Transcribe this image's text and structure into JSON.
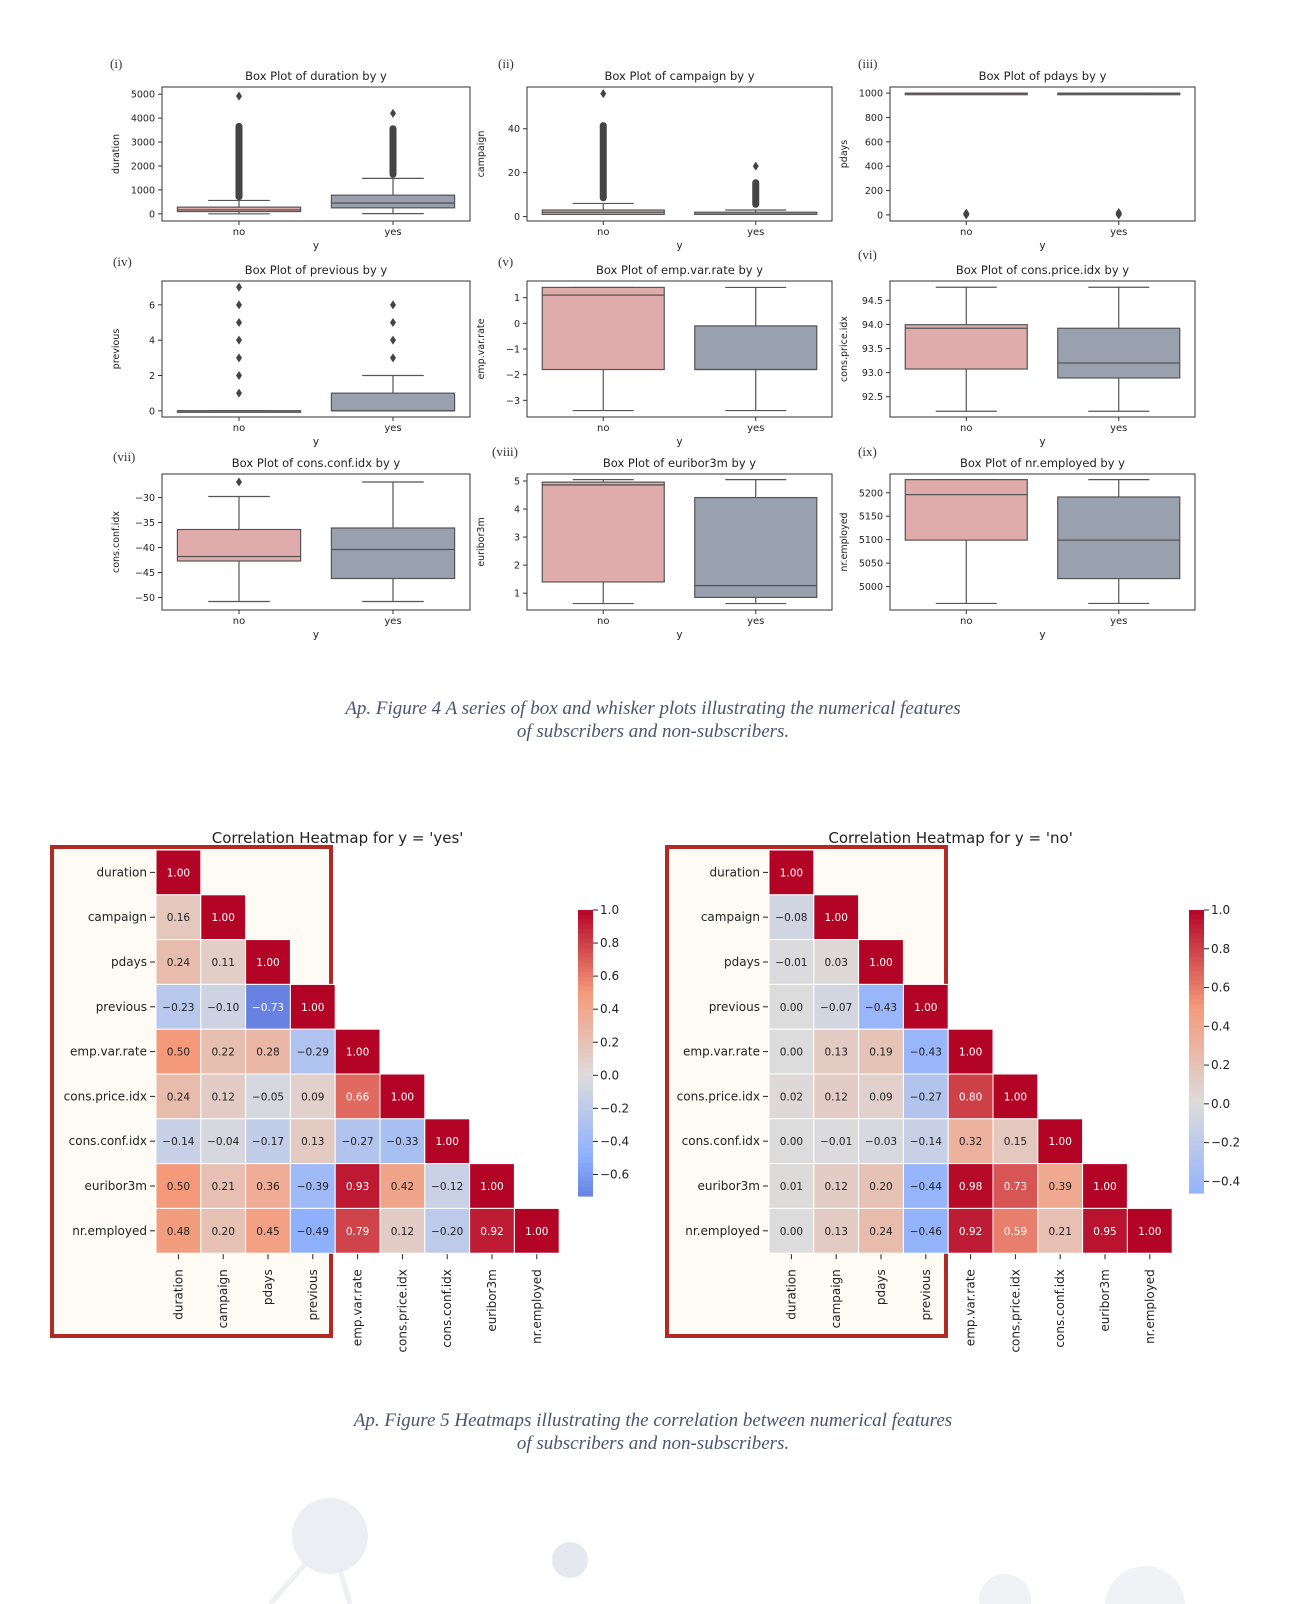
{
  "figure4": {
    "caption_line1": "Ap. Figure 4 A series of box and whisker plots illustrating the numerical features",
    "caption_line2": "of subscribers and non-subscribers.",
    "colors": {
      "no": "#e0abab",
      "yes": "#98a1ad",
      "line": "#555555"
    },
    "chart_data": [
      {
        "panel": "(i)",
        "type": "box",
        "title": "Box Plot of duration by y",
        "xlabel": "y",
        "ylabel": "duration",
        "categories": [
          "no",
          "yes"
        ],
        "ylim": [
          -300,
          5300
        ],
        "yticks": [
          0,
          1000,
          2000,
          3000,
          4000,
          5000
        ],
        "boxes": [
          {
            "cat": "no",
            "whislo": 0,
            "q1": 95,
            "med": 165,
            "q3": 280,
            "whishi": 560,
            "outliers_from": 570,
            "outliers_to": 3800,
            "outliers": [
              4920
            ]
          },
          {
            "cat": "yes",
            "whislo": 8,
            "q1": 250,
            "med": 450,
            "q3": 780,
            "whishi": 1480,
            "outliers_from": 1500,
            "outliers_to": 3700,
            "outliers": [
              4200
            ]
          }
        ]
      },
      {
        "panel": "(ii)",
        "type": "box",
        "title": "Box Plot of campaign by y",
        "xlabel": "y",
        "ylabel": "campaign",
        "categories": [
          "no",
          "yes"
        ],
        "ylim": [
          -2,
          59
        ],
        "yticks": [
          0,
          20,
          40
        ],
        "boxes": [
          {
            "cat": "no",
            "whislo": 1,
            "q1": 1,
            "med": 2,
            "q3": 3,
            "whishi": 6,
            "outliers_from": 7,
            "outliers_to": 43,
            "outliers": [
              56
            ]
          },
          {
            "cat": "yes",
            "whislo": 1,
            "q1": 1,
            "med": 1,
            "q3": 2,
            "whishi": 3,
            "outliers_from": 4,
            "outliers_to": 17,
            "outliers": [
              23
            ]
          }
        ]
      },
      {
        "panel": "(iii)",
        "type": "box",
        "title": "Box Plot of pdays by y",
        "xlabel": "y",
        "ylabel": "pdays",
        "categories": [
          "no",
          "yes"
        ],
        "ylim": [
          -50,
          1050
        ],
        "yticks": [
          0,
          200,
          400,
          600,
          800,
          1000
        ],
        "boxes": [
          {
            "cat": "no",
            "whislo": 999,
            "q1": 999,
            "med": 999,
            "q3": 999,
            "whishi": 999,
            "outliers": [
              0,
              3,
              6,
              10,
              15
            ]
          },
          {
            "cat": "yes",
            "whislo": 999,
            "q1": 999,
            "med": 999,
            "q3": 999,
            "whishi": 999,
            "outliers": [
              0,
              3,
              6,
              10,
              15,
              20
            ]
          }
        ]
      },
      {
        "panel": "(iv)",
        "type": "box",
        "title": "Box Plot of previous by y",
        "xlabel": "y",
        "ylabel": "previous",
        "categories": [
          "no",
          "yes"
        ],
        "ylim": [
          -0.35,
          7.35
        ],
        "yticks": [
          0,
          2,
          4,
          6
        ],
        "boxes": [
          {
            "cat": "no",
            "whislo": 0,
            "q1": 0,
            "med": 0,
            "q3": 0,
            "whishi": 0,
            "outliers": [
              1,
              2,
              3,
              4,
              5,
              6,
              7
            ]
          },
          {
            "cat": "yes",
            "whislo": 0,
            "q1": 0,
            "med": 0,
            "q3": 1,
            "whishi": 2,
            "outliers": [
              3,
              4,
              5,
              6
            ]
          }
        ]
      },
      {
        "panel": "(v)",
        "type": "box",
        "title": "Box Plot of emp.var.rate by y",
        "xlabel": "y",
        "ylabel": "emp.var.rate",
        "categories": [
          "no",
          "yes"
        ],
        "ylim": [
          -3.65,
          1.65
        ],
        "yticks": [
          1,
          0,
          -1,
          -2,
          -3
        ],
        "boxes": [
          {
            "cat": "no",
            "whislo": -3.4,
            "q1": -1.8,
            "med": 1.1,
            "q3": 1.4,
            "whishi": 1.4,
            "outliers": []
          },
          {
            "cat": "yes",
            "whislo": -3.4,
            "q1": -1.8,
            "med": -1.8,
            "q3": -0.1,
            "whishi": 1.4,
            "outliers": []
          }
        ]
      },
      {
        "panel": "(vi)",
        "type": "box",
        "title": "Box Plot of cons.price.idx by y",
        "xlabel": "y",
        "ylabel": "cons.price.idx",
        "categories": [
          "no",
          "yes"
        ],
        "ylim": [
          92.08,
          94.9
        ],
        "yticks": [
          92.5,
          93.0,
          93.5,
          94.0,
          94.5
        ],
        "boxes": [
          {
            "cat": "no",
            "whislo": 92.2,
            "q1": 93.075,
            "med": 93.92,
            "q3": 93.994,
            "whishi": 94.77,
            "outliers": []
          },
          {
            "cat": "yes",
            "whislo": 92.2,
            "q1": 92.89,
            "med": 93.2,
            "q3": 93.92,
            "whishi": 94.77,
            "outliers": []
          }
        ]
      },
      {
        "panel": "(vii)",
        "type": "box",
        "title": "Box Plot of cons.conf.idx by y",
        "xlabel": "y",
        "ylabel": "cons.conf.idx",
        "categories": [
          "no",
          "yes"
        ],
        "ylim": [
          -52.5,
          -25.3
        ],
        "yticks": [
          -30,
          -35,
          -40,
          -45,
          -50
        ],
        "boxes": [
          {
            "cat": "no",
            "whislo": -50.8,
            "q1": -42.7,
            "med": -41.8,
            "q3": -36.4,
            "whishi": -29.8,
            "outliers": [
              -26.9
            ]
          },
          {
            "cat": "yes",
            "whislo": -50.8,
            "q1": -46.2,
            "med": -40.4,
            "q3": -36.1,
            "whishi": -26.9,
            "outliers": []
          }
        ]
      },
      {
        "panel": "(viii)",
        "type": "box",
        "title": "Box Plot of euribor3m by y",
        "xlabel": "y",
        "ylabel": "euribor3m",
        "categories": [
          "no",
          "yes"
        ],
        "ylim": [
          0.4,
          5.25
        ],
        "yticks": [
          1,
          2,
          3,
          4,
          5
        ],
        "boxes": [
          {
            "cat": "no",
            "whislo": 0.63,
            "q1": 1.4,
            "med": 4.86,
            "q3": 4.96,
            "whishi": 5.05,
            "outliers": []
          },
          {
            "cat": "yes",
            "whislo": 0.63,
            "q1": 0.85,
            "med": 1.27,
            "q3": 4.41,
            "whishi": 5.05,
            "outliers": []
          }
        ]
      },
      {
        "panel": "(ix)",
        "type": "box",
        "title": "Box Plot of nr.employed by y",
        "xlabel": "y",
        "ylabel": "nr.employed",
        "categories": [
          "no",
          "yes"
        ],
        "ylim": [
          4950,
          5240
        ],
        "yticks": [
          5000,
          5050,
          5100,
          5150,
          5200
        ],
        "boxes": [
          {
            "cat": "no",
            "whislo": 4964,
            "q1": 5099,
            "med": 5196,
            "q3": 5228,
            "whishi": 5228,
            "outliers": []
          },
          {
            "cat": "yes",
            "whislo": 4964,
            "q1": 5017,
            "med": 5099,
            "q3": 5191,
            "whishi": 5228,
            "outliers": []
          }
        ]
      }
    ]
  },
  "figure5": {
    "caption_line1": "Ap. Figure 5 Heatmaps illustrating the correlation between numerical features",
    "caption_line2": "of subscribers and non-subscribers.",
    "highlight_color": "#b22a25",
    "chart_data": [
      {
        "type": "heatmap",
        "title": "Correlation Heatmap for y = 'yes'",
        "labels": [
          "duration",
          "campaign",
          "pdays",
          "previous",
          "emp.var.rate",
          "cons.price.idx",
          "cons.conf.idx",
          "euribor3m",
          "nr.employed"
        ],
        "vmin": -0.73,
        "vmax": 1.0,
        "colorbar_ticks": [
          1.0,
          0.8,
          0.6,
          0.4,
          0.2,
          0.0,
          -0.2,
          -0.4,
          -0.6
        ],
        "values": [
          [
            1.0
          ],
          [
            0.16,
            1.0
          ],
          [
            0.24,
            0.11,
            1.0
          ],
          [
            -0.23,
            -0.1,
            -0.73,
            1.0
          ],
          [
            0.5,
            0.22,
            0.28,
            -0.29,
            1.0
          ],
          [
            0.24,
            0.12,
            -0.05,
            0.09,
            0.66,
            1.0
          ],
          [
            -0.14,
            -0.04,
            -0.17,
            0.13,
            -0.27,
            -0.33,
            1.0
          ],
          [
            0.5,
            0.21,
            0.36,
            -0.39,
            0.93,
            0.42,
            -0.12,
            1.0
          ],
          [
            0.48,
            0.2,
            0.45,
            -0.49,
            0.79,
            0.12,
            -0.2,
            0.92,
            1.0
          ]
        ]
      },
      {
        "type": "heatmap",
        "title": "Correlation Heatmap for y = 'no'",
        "labels": [
          "duration",
          "campaign",
          "pdays",
          "previous",
          "emp.var.rate",
          "cons.price.idx",
          "cons.conf.idx",
          "euribor3m",
          "nr.employed"
        ],
        "vmin": -0.46,
        "vmax": 1.0,
        "colorbar_ticks": [
          1.0,
          0.8,
          0.6,
          0.4,
          0.2,
          0.0,
          -0.2,
          -0.4
        ],
        "values": [
          [
            1.0
          ],
          [
            -0.08,
            1.0
          ],
          [
            -0.01,
            0.03,
            1.0
          ],
          [
            -0.0,
            -0.07,
            -0.43,
            1.0
          ],
          [
            0.0,
            0.13,
            0.19,
            -0.43,
            1.0
          ],
          [
            0.02,
            0.12,
            0.09,
            -0.27,
            0.8,
            1.0
          ],
          [
            0.0,
            -0.01,
            -0.03,
            -0.14,
            0.32,
            0.15,
            1.0
          ],
          [
            0.01,
            0.12,
            0.2,
            -0.44,
            0.98,
            0.73,
            0.39,
            1.0
          ],
          [
            -0.0,
            0.13,
            0.24,
            -0.46,
            0.92,
            0.59,
            0.21,
            0.95,
            1.0
          ]
        ]
      }
    ]
  }
}
